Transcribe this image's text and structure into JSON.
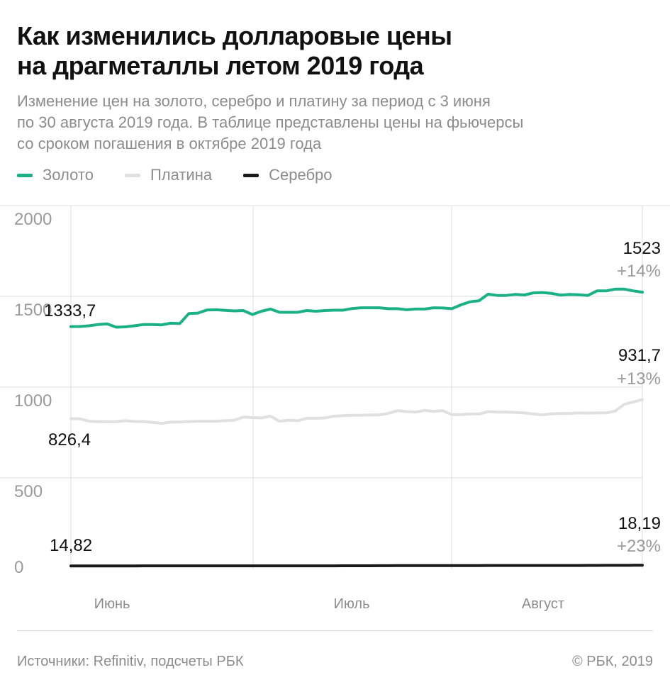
{
  "header": {
    "title_line1": "Как изменились долларовые цены",
    "title_line2": "на драгметаллы летом 2019 года",
    "subtitle_line1": "Изменение цен на золото, серебро и платину за период с 3 июня",
    "subtitle_line2": "по 30 августа 2019 года. В таблице представлены цены на фьючерсы",
    "subtitle_line3": "со сроком погашения в октябре 2019 года"
  },
  "legend": [
    {
      "label": "Золото",
      "color": "#1cb184"
    },
    {
      "label": "Платина",
      "color": "#e0e0e0"
    },
    {
      "label": "Серебро",
      "color": "#1a1a1a"
    }
  ],
  "footer": {
    "source": "Источники: Refinitiv, подсчеты РБК",
    "copyright": "© РБК, 2019"
  },
  "chart_data": {
    "type": "line",
    "ylim": [
      0,
      2000
    ],
    "yticks": [
      "2000",
      "1500",
      "1000",
      "500",
      "0"
    ],
    "ytick_values": [
      2000,
      1500,
      1000,
      500,
      0
    ],
    "month_labels": [
      "Июнь",
      "Июль",
      "Август"
    ],
    "series": [
      {
        "name": "Золото",
        "color": "#1cb184",
        "start_label": "1333,7",
        "end_label": "1523",
        "end_change": "+14%",
        "values": [
          1333.7,
          1334,
          1338,
          1345,
          1348,
          1330,
          1332,
          1338,
          1345,
          1345,
          1343,
          1352,
          1350,
          1405,
          1408,
          1425,
          1426,
          1423,
          1420,
          1422,
          1400,
          1418,
          1430,
          1412,
          1412,
          1412,
          1422,
          1418,
          1422,
          1424,
          1424,
          1433,
          1437,
          1437,
          1437,
          1432,
          1432,
          1426,
          1430,
          1430,
          1437,
          1436,
          1432,
          1453,
          1470,
          1476,
          1512,
          1505,
          1505,
          1511,
          1508,
          1519,
          1521,
          1516,
          1507,
          1511,
          1509,
          1505,
          1530,
          1530,
          1540,
          1540,
          1530,
          1523
        ]
      },
      {
        "name": "Платина",
        "color": "#e0e0e0",
        "start_label": "826,4",
        "end_label": "931,7",
        "end_change": "+13%",
        "values": [
          826.4,
          825,
          812,
          810,
          809,
          809,
          815,
          811,
          810,
          806,
          800,
          807,
          808,
          810,
          812,
          812,
          812,
          815,
          817,
          835,
          832,
          830,
          840,
          812,
          818,
          815,
          828,
          828,
          830,
          840,
          843,
          845,
          845,
          847,
          847,
          855,
          870,
          865,
          862,
          872,
          866,
          870,
          848,
          848,
          852,
          852,
          865,
          862,
          862,
          860,
          858,
          852,
          847,
          853,
          855,
          855,
          858,
          857,
          858,
          858,
          868,
          905,
          918,
          931.7
        ]
      },
      {
        "name": "Серебро",
        "color": "#1a1a1a",
        "start_label": "14,82",
        "end_label": "18,19",
        "end_change": "+23%",
        "values": [
          14.82,
          14.9,
          14.9,
          15.0,
          15.0,
          14.9,
          14.9,
          15.0,
          15.1,
          15.1,
          15.1,
          15.2,
          15.2,
          15.3,
          15.3,
          15.3,
          15.3,
          15.3,
          15.3,
          15.3,
          15.3,
          15.3,
          15.3,
          15.2,
          15.2,
          15.2,
          15.3,
          15.3,
          15.3,
          15.4,
          15.5,
          15.6,
          15.7,
          15.8,
          16.0,
          16.2,
          16.3,
          16.3,
          16.4,
          16.3,
          16.3,
          16.3,
          16.5,
          16.6,
          16.8,
          16.9,
          17.0,
          17.1,
          17.1,
          17.1,
          17.0,
          17.1,
          17.1,
          17.2,
          17.0,
          17.1,
          17.1,
          17.4,
          17.6,
          17.8,
          18.0,
          18.1,
          18.2,
          18.19
        ]
      }
    ]
  }
}
